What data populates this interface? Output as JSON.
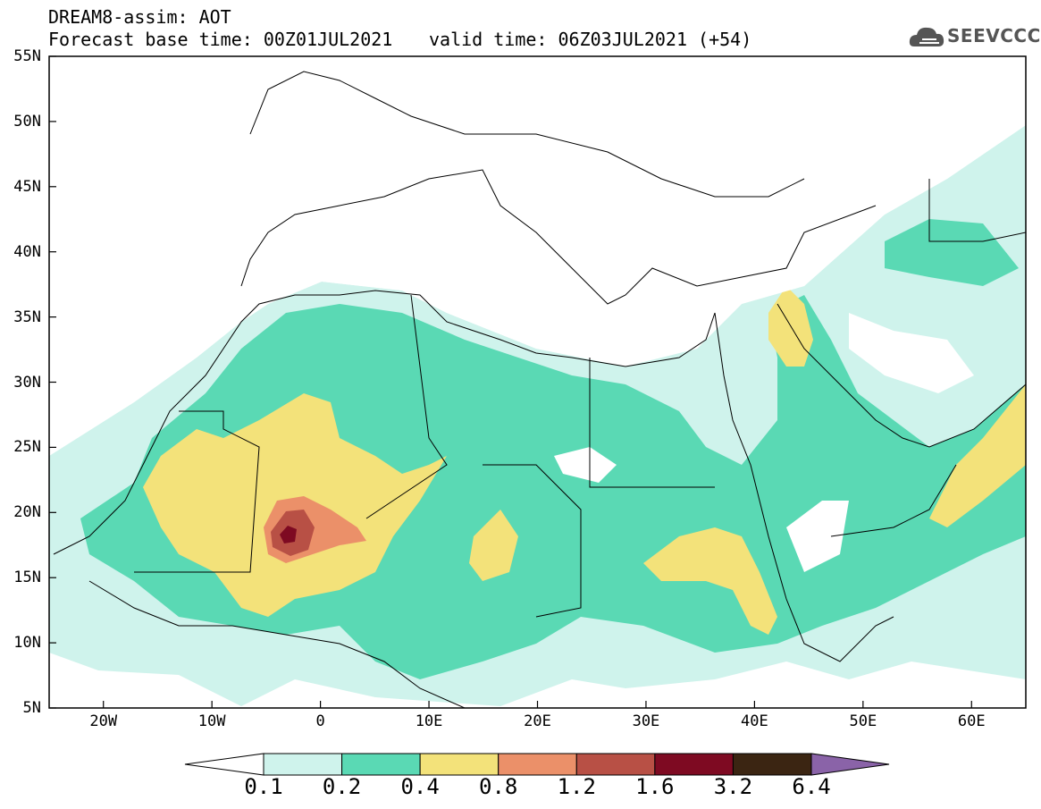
{
  "header": {
    "line1": "DREAM8-assim: AOT",
    "line2": "Forecast base time: 00Z01JUL2021",
    "valid": "valid time: 06Z03JUL2021 (+54)"
  },
  "logo": {
    "text": "SEEVCCC",
    "icon": "cloud-icon"
  },
  "map": {
    "lat_labels": [
      "55N",
      "50N",
      "45N",
      "40N",
      "35N",
      "30N",
      "25N",
      "20N",
      "15N",
      "10N",
      "5N"
    ],
    "lon_labels": [
      "20W",
      "10W",
      "0",
      "10E",
      "20E",
      "30E",
      "40E",
      "50E",
      "60E"
    ],
    "lon_range": [
      -25,
      65
    ],
    "lat_range": [
      5,
      55
    ]
  },
  "colorbar": {
    "labels": [
      "0.1",
      "0.2",
      "0.4",
      "0.8",
      "1.2",
      "1.6",
      "3.2",
      "6.4"
    ],
    "colors": [
      "#cff3ec",
      "#5ad9b4",
      "#f3e27a",
      "#eb9069",
      "#b85045",
      "#7e0a22",
      "#3b2512",
      "#8a63a8"
    ]
  }
}
